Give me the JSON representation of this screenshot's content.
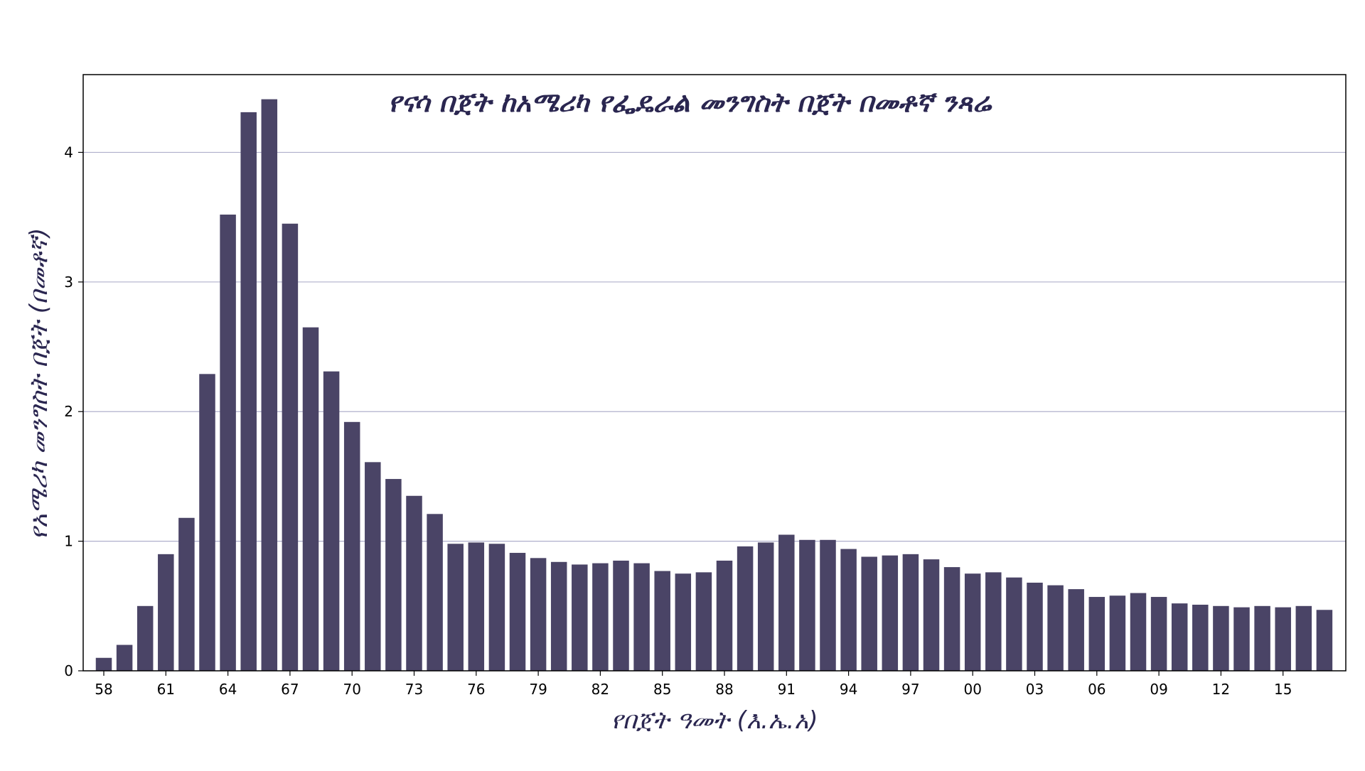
{
  "chart_data": {
    "type": "bar",
    "title": "የናሳ በጀት ከአሜሪካ የፌዴራል መንግስት በጀት በመቶኛ ንጻሬ",
    "xlabel": "የበጀት ዓመት (እ.ኤ.አ)",
    "ylabel": "የአሜሪካ መንግስት በጀት (በመቶኛ)",
    "ylim": [
      0,
      4.6
    ],
    "yticks": [
      0,
      1,
      2,
      3,
      4
    ],
    "grid": "horizontal",
    "legend": "none",
    "bar_color": "#4a4466",
    "grid_color": "#b0b0cc",
    "tick_labels": [
      "58",
      "61",
      "64",
      "67",
      "70",
      "73",
      "76",
      "79",
      "82",
      "85",
      "88",
      "91",
      "94",
      "97",
      "00",
      "03",
      "06",
      "09",
      "12",
      "15"
    ],
    "categories": [
      "58",
      "59",
      "60",
      "61",
      "62",
      "63",
      "64",
      "65",
      "66",
      "67",
      "68",
      "69",
      "70",
      "71",
      "72",
      "73",
      "74",
      "75",
      "76",
      "77",
      "78",
      "79",
      "80",
      "81",
      "82",
      "83",
      "84",
      "85",
      "86",
      "87",
      "88",
      "89",
      "90",
      "91",
      "92",
      "93",
      "94",
      "95",
      "96",
      "97",
      "98",
      "99",
      "00",
      "01",
      "02",
      "03",
      "04",
      "05",
      "06",
      "07",
      "08",
      "09",
      "10",
      "11",
      "12",
      "13",
      "14",
      "15",
      "16",
      "17"
    ],
    "values": [
      0.1,
      0.2,
      0.5,
      0.9,
      1.18,
      2.29,
      3.52,
      4.31,
      4.41,
      3.45,
      2.65,
      2.31,
      1.92,
      1.61,
      1.48,
      1.35,
      1.21,
      0.98,
      0.99,
      0.98,
      0.91,
      0.87,
      0.84,
      0.82,
      0.83,
      0.85,
      0.83,
      0.77,
      0.75,
      0.76,
      0.85,
      0.96,
      0.99,
      1.05,
      1.01,
      1.01,
      0.94,
      0.88,
      0.89,
      0.9,
      0.86,
      0.8,
      0.75,
      0.76,
      0.72,
      0.68,
      0.66,
      0.63,
      0.57,
      0.58,
      0.6,
      0.57,
      0.52,
      0.51,
      0.5,
      0.49,
      0.5,
      0.49,
      0.5,
      0.47
    ]
  }
}
